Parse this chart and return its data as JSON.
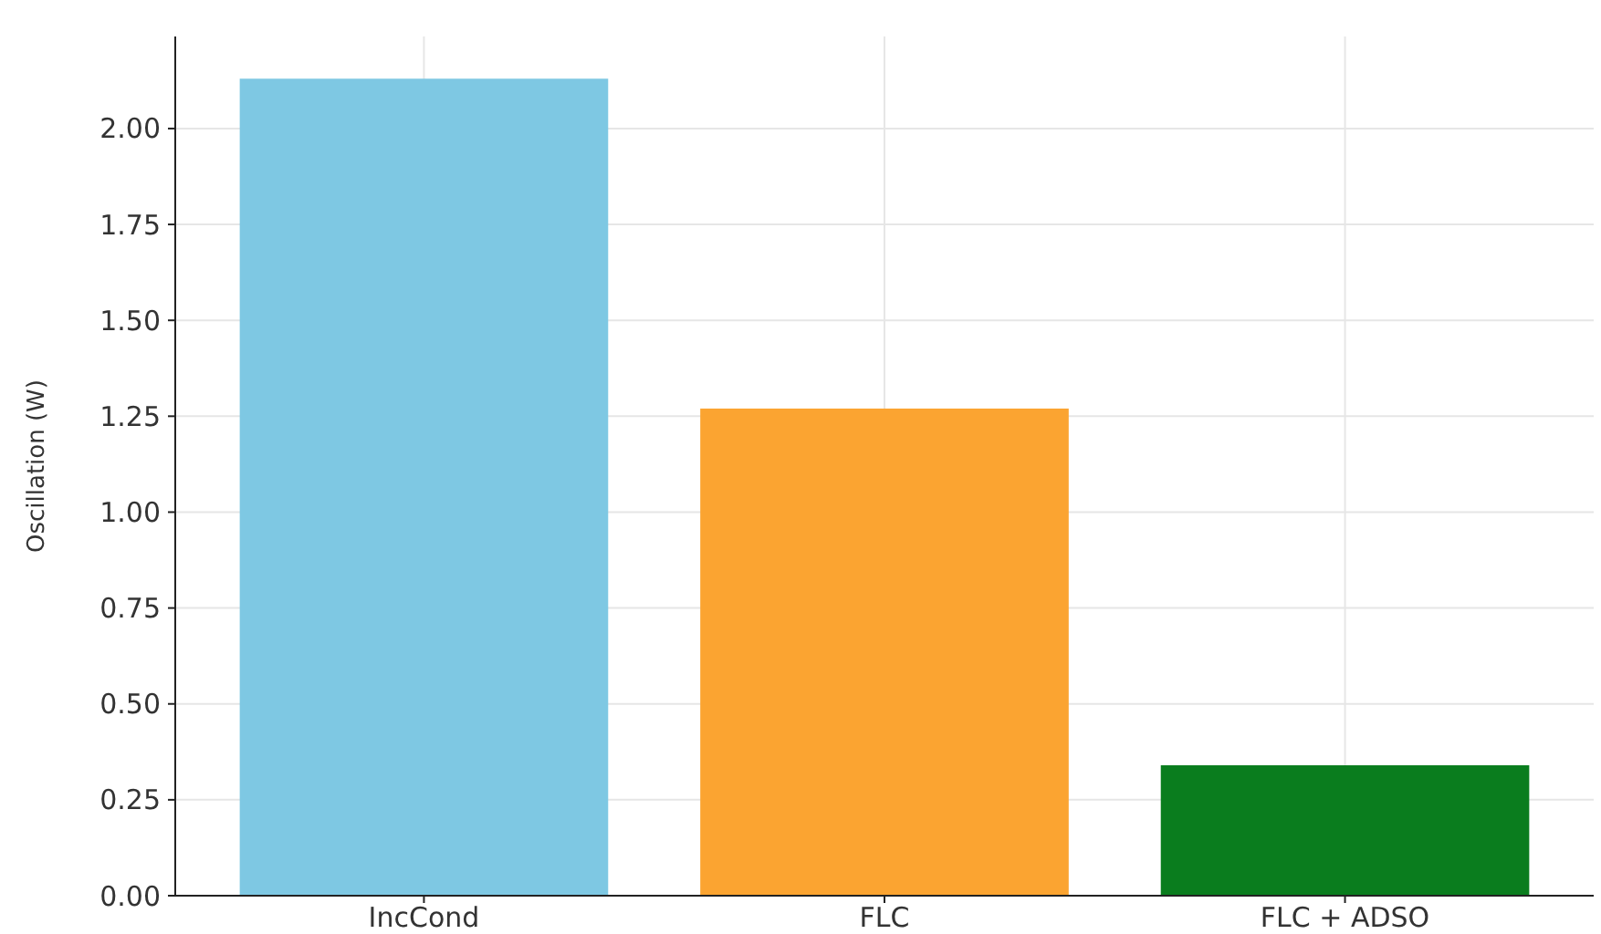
{
  "chart_data": {
    "type": "bar",
    "categories": [
      "IncCond",
      "FLC",
      "FLC + ADSO"
    ],
    "values": [
      2.13,
      1.27,
      0.34
    ],
    "colors": [
      "#7ec8e3",
      "#fba431",
      "#0a7d1e"
    ],
    "ylabel": "Oscillation (W)",
    "ylim": [
      0,
      2.24
    ],
    "yticks": [
      {
        "value": 0,
        "label": "0.00"
      },
      {
        "value": 0.25,
        "label": "0.25"
      },
      {
        "value": 0.5,
        "label": "0.50"
      },
      {
        "value": 0.75,
        "label": "0.75"
      },
      {
        "value": 1,
        "label": "1.00"
      },
      {
        "value": 1.25,
        "label": "1.25"
      },
      {
        "value": 1.5,
        "label": "1.50"
      },
      {
        "value": 1.75,
        "label": "1.75"
      },
      {
        "value": 2,
        "label": "2.00"
      }
    ],
    "grid": true
  }
}
